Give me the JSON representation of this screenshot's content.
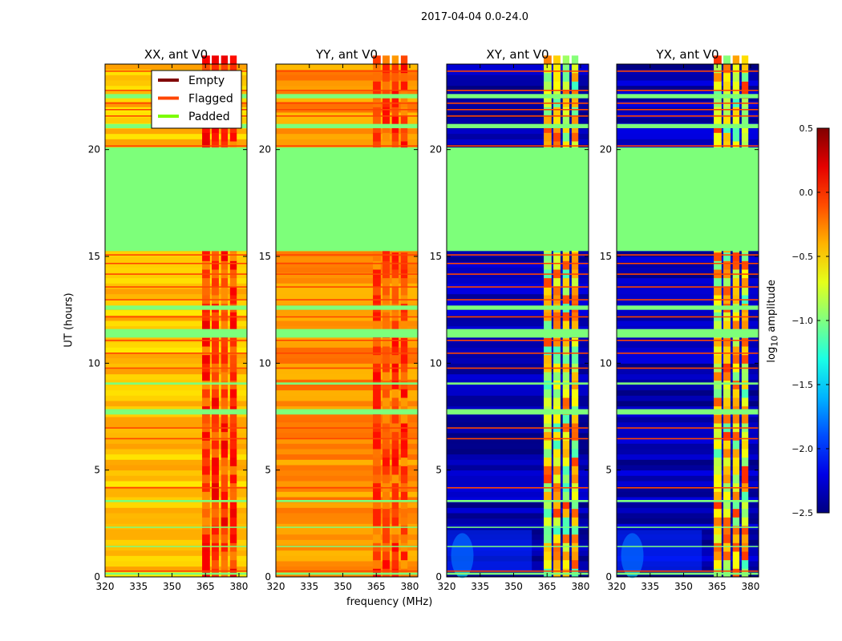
{
  "chart_data": {
    "type": "heatmap",
    "suptitle": "2017-04-04 0.0-24.0",
    "xlabel": "frequency (MHz)",
    "ylabel": "UT (hours)",
    "xlim": [
      320,
      383.6
    ],
    "ylim": [
      0,
      24
    ],
    "xticks": [
      "320",
      "335",
      "350",
      "365",
      "380"
    ],
    "xtick_values": [
      320,
      335,
      350,
      365,
      380
    ],
    "yticks": [
      "0",
      "5",
      "10",
      "15",
      "20"
    ],
    "ytick_values": [
      0,
      5,
      10,
      15,
      20
    ],
    "panels": [
      {
        "title": "XX, ant V0",
        "base_level": -0.45,
        "rfi_level": -0.05,
        "background": "flat"
      },
      {
        "title": "YY, ant V0",
        "base_level": -0.3,
        "rfi_level": -0.1,
        "background": "flat"
      },
      {
        "title": "XY, ant V0",
        "base_level": -2.35,
        "rfi_level": -0.6,
        "background": "noise"
      },
      {
        "title": "YX, ant V0",
        "base_level": -2.35,
        "rfi_level": -0.6,
        "background": "noise"
      }
    ],
    "rfi_channels_mhz": [
      [
        363.5,
        367
      ],
      [
        367.8,
        371
      ],
      [
        372,
        375
      ],
      [
        376,
        379
      ]
    ],
    "padded_hours": [
      [
        15.25,
        20.1
      ],
      [
        7.6,
        7.85
      ],
      [
        11.2,
        11.6
      ],
      [
        12.5,
        12.7
      ],
      [
        1.4,
        1.45
      ],
      [
        2.3,
        2.35
      ],
      [
        3.5,
        3.6
      ],
      [
        9.0,
        9.1
      ],
      [
        21.0,
        21.2
      ],
      [
        22.4,
        22.6
      ],
      [
        0.1,
        0.2
      ]
    ],
    "flagged_hours": [
      0.3,
      4.2,
      6.5,
      7.0,
      9.8,
      10.5,
      11.1,
      12.2,
      13.0,
      13.6,
      14.2,
      14.7,
      15.1,
      20.2,
      21.6,
      21.9,
      22.2,
      22.8,
      23.7
    ],
    "legend": {
      "placement": "upper-right of first panel",
      "entries": [
        {
          "label": "Empty",
          "color": "#800000"
        },
        {
          "label": "Flagged",
          "color": "#ff4500"
        },
        {
          "label": "Padded",
          "color": "#7cfc00"
        }
      ]
    },
    "colorbar": {
      "label_prefix": "log",
      "label_sub": "10",
      "label_suffix": " amplitude",
      "range": [
        -2.5,
        0.5
      ],
      "ticks": [
        "0.5",
        "0.0",
        "−0.5",
        "−1.0",
        "−1.5",
        "−2.0",
        "−2.5"
      ],
      "tick_values": [
        0.5,
        0,
        -0.5,
        -1,
        -1.5,
        -2,
        -2.5
      ],
      "colormap": "jet"
    }
  }
}
